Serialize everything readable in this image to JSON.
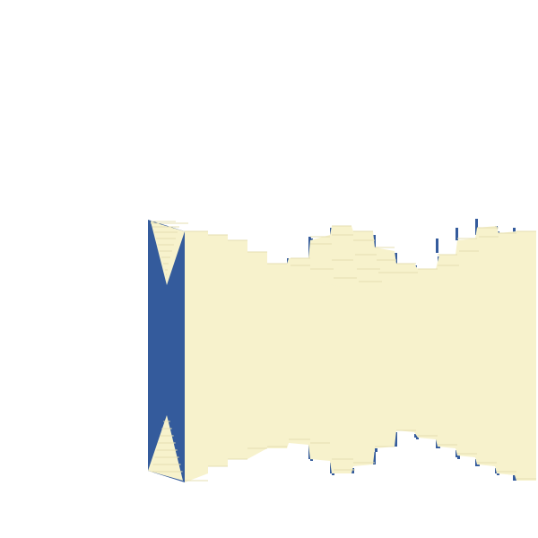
{
  "scene": {
    "background": "#ffffff",
    "colors": {
      "face": "#f7f2cc",
      "side": "#345b9c",
      "edge": "#e6dfb2"
    }
  }
}
